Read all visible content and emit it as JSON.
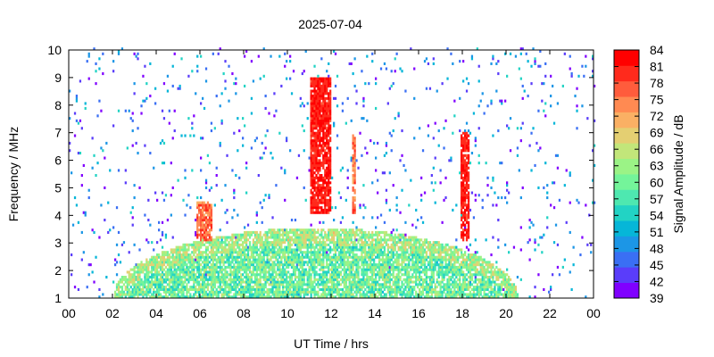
{
  "chart_data": {
    "type": "heatmap",
    "title": "2025-07-04",
    "xlabel": "UT Time / hrs",
    "ylabel": "Frequency / MHz",
    "colorbar_label": "Signal Amplitude / dB",
    "xlim": [
      0,
      24
    ],
    "ylim": [
      1,
      10
    ],
    "x_ticks": [
      "00",
      "02",
      "04",
      "06",
      "08",
      "10",
      "12",
      "14",
      "16",
      "18",
      "20",
      "22",
      "00"
    ],
    "y_ticks": [
      "1",
      "2",
      "3",
      "4",
      "5",
      "6",
      "7",
      "8",
      "9",
      "10"
    ],
    "colorbar_ticks": [
      "39",
      "42",
      "45",
      "48",
      "51",
      "54",
      "57",
      "60",
      "63",
      "66",
      "69",
      "72",
      "75",
      "78",
      "81",
      "84"
    ],
    "color_range": [
      39,
      84
    ],
    "colors": [
      "#8000ff",
      "#5a3dfa",
      "#3a6ff4",
      "#1c96e6",
      "#06b6d8",
      "#22d3c4",
      "#4ee8b0",
      "#74f49a",
      "#9bf386",
      "#c2e67a",
      "#e4cf72",
      "#fab064",
      "#ff8a52",
      "#ff5c3c",
      "#ff2a1c",
      "#ff0000"
    ],
    "features": [
      {
        "name": "daytime band",
        "t_start": 2.0,
        "t_end": 20.5,
        "freq_max_at_noon": 3.5,
        "amplitude": [
          45,
          66
        ]
      },
      {
        "name": "burst",
        "t_start": 11.0,
        "t_end": 12.0,
        "freq_range": [
          4,
          9
        ],
        "amplitude": [
          78,
          84
        ]
      },
      {
        "name": "burst",
        "t_start": 12.9,
        "t_end": 13.1,
        "freq_range": [
          4,
          7
        ],
        "amplitude": [
          72,
          81
        ]
      },
      {
        "name": "burst",
        "t_start": 17.9,
        "t_end": 18.3,
        "freq_range": [
          3,
          7
        ],
        "amplitude": [
          78,
          84
        ]
      },
      {
        "name": "burst",
        "t_start": 5.8,
        "t_end": 6.5,
        "freq_range": [
          3,
          4.5
        ],
        "amplitude": [
          72,
          81
        ]
      }
    ]
  }
}
